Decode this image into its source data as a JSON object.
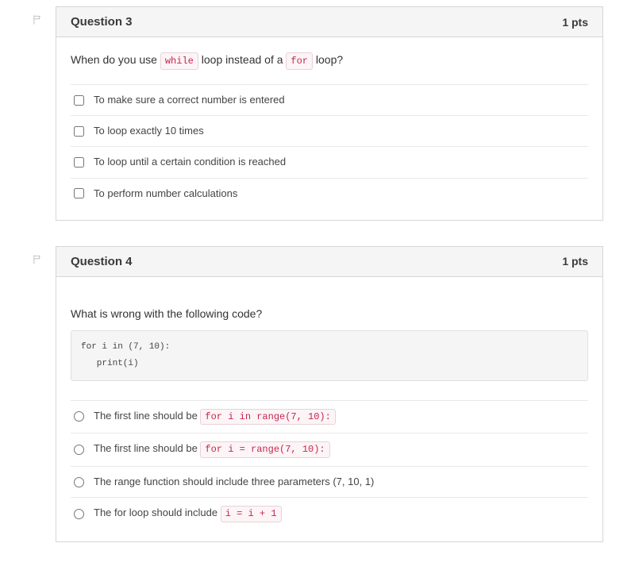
{
  "questions": [
    {
      "title": "Question 3",
      "pts": "1 pts",
      "input_type": "checkbox",
      "prompt_extra_margin": false,
      "prompt_parts": [
        {
          "t": "text",
          "v": "When do you use "
        },
        {
          "t": "code",
          "v": "while"
        },
        {
          "t": "text",
          "v": " loop instead of a "
        },
        {
          "t": "code",
          "v": "for"
        },
        {
          "t": "text",
          "v": " loop?"
        }
      ],
      "code_block": null,
      "answers": [
        [
          {
            "t": "text",
            "v": "To make sure a correct number is entered"
          }
        ],
        [
          {
            "t": "text",
            "v": "To loop exactly 10 times"
          }
        ],
        [
          {
            "t": "text",
            "v": "To loop until a certain condition is reached"
          }
        ],
        [
          {
            "t": "text",
            "v": "To perform number calculations"
          }
        ]
      ]
    },
    {
      "title": "Question 4",
      "pts": "1 pts",
      "input_type": "radio",
      "prompt_extra_margin": true,
      "prompt_parts": [
        {
          "t": "text",
          "v": "What is wrong with the following code?"
        }
      ],
      "code_block": "for i in (7, 10):\n   print(i)",
      "answers": [
        [
          {
            "t": "text",
            "v": "The first line should be "
          },
          {
            "t": "code",
            "v": "for i in range(7, 10):"
          }
        ],
        [
          {
            "t": "text",
            "v": "The first line should be "
          },
          {
            "t": "code",
            "v": "for i = range(7, 10):"
          }
        ],
        [
          {
            "t": "text",
            "v": "The range function should include three parameters (7, 10, 1)"
          }
        ],
        [
          {
            "t": "text",
            "v": "The for loop should include "
          },
          {
            "t": "code",
            "v": "i = i + 1"
          }
        ]
      ]
    }
  ]
}
